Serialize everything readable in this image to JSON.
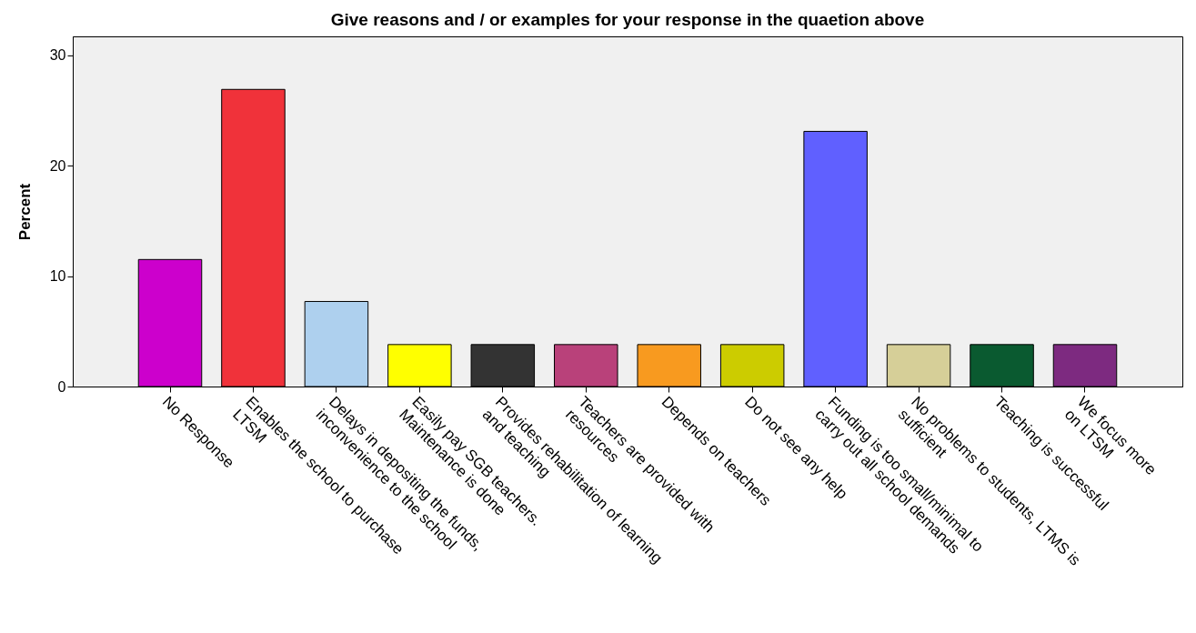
{
  "chart_data": {
    "type": "bar",
    "title": "Give reasons and / or examples for your response in the quaetion above",
    "ylabel": "Percent",
    "categories": [
      "No  Response",
      "Enables the school to purchase\nLTSM",
      "Delays in depositing the funds,\ninconvenience to the school",
      "Easily pay SGB teachers.\nMaintenance is done",
      "Provides rehabilitation of learning\nand teaching",
      "Teachers are provided with\nresources",
      "Depends on teachers",
      "Do not see any help",
      "Funding is too small/minimal to\ncarry out all school demands",
      "No problems to students, LTMS is\nsufficient",
      "Teaching is successful",
      "We focus more\non LTSM"
    ],
    "values": [
      11.5,
      26.9,
      7.7,
      3.8,
      3.8,
      3.8,
      3.8,
      3.8,
      23.1,
      3.8,
      3.8,
      3.8
    ],
    "colors": [
      "#cc00cc",
      "#f0323a",
      "#aed0ee",
      "#ffff00",
      "#333333",
      "#b9417a",
      "#f89a1f",
      "#cccc00",
      "#6060ff",
      "#d6cf98",
      "#0a5a30",
      "#7d2a80"
    ],
    "ylim": [
      0,
      31.7
    ],
    "yticks": [
      0,
      10,
      20,
      30
    ],
    "grid": false,
    "legend": false
  }
}
